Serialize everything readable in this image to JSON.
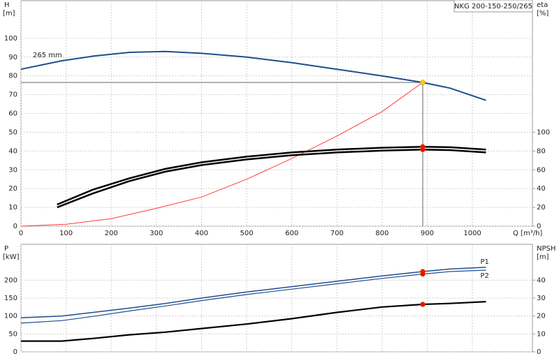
{
  "chart_data": [
    {
      "type": "line",
      "title": "NKG 200-150-250/265",
      "ylabel": "H",
      "yunit": "[m]",
      "y2label": "eta",
      "y2unit": "[%]",
      "xlabel": "Q [m³/h]",
      "xlim": [
        0,
        1133
      ],
      "xticks": [
        0,
        100,
        200,
        300,
        400,
        500,
        600,
        700,
        800,
        900,
        1000
      ],
      "ylim": [
        0,
        120
      ],
      "yticks": [
        0,
        10,
        20,
        30,
        40,
        50,
        60,
        70,
        80,
        90,
        100
      ],
      "y2lim": [
        0,
        240
      ],
      "y2ticks": [
        0,
        20,
        40,
        60,
        80,
        100
      ],
      "grid": true,
      "annotation": "265 mm",
      "series": [
        {
          "color": "#1f4e8c",
          "x": [
            0,
            90,
            160,
            240,
            320,
            400,
            500,
            600,
            700,
            800,
            890,
            950,
            1030
          ],
          "values": [
            83.5,
            88,
            90.5,
            92.5,
            93,
            92,
            90,
            87,
            83.5,
            80,
            76.5,
            73.5,
            67
          ]
        },
        {
          "color": "#ff3b3b",
          "x": [
            0,
            100,
            200,
            300,
            400,
            500,
            600,
            700,
            800,
            890
          ],
          "values": [
            0,
            1,
            4,
            9.5,
            15.5,
            25,
            36,
            48,
            61,
            76.5
          ]
        },
        {
          "color": "#000000",
          "axis": "y2",
          "x": [
            80,
            160,
            240,
            320,
            400,
            500,
            600,
            700,
            800,
            890,
            950,
            1030
          ],
          "values": [
            23,
            39,
            51,
            61,
            68,
            74,
            78.5,
            81.5,
            83.5,
            84.5,
            84,
            81.5
          ]
        },
        {
          "color": "#000000",
          "axis": "y2",
          "x": [
            80,
            160,
            240,
            320,
            400,
            500,
            600,
            700,
            800,
            890,
            950,
            1030
          ],
          "values": [
            20,
            35,
            48,
            58,
            65,
            71,
            75.5,
            78.5,
            80.5,
            81.5,
            81,
            78.5
          ]
        }
      ],
      "markers": [
        {
          "x": 890,
          "y": 76.5,
          "color": "#ffcc00"
        },
        {
          "x": 890,
          "y": 84.5,
          "axis": "y2",
          "color": "#ff0000"
        },
        {
          "x": 890,
          "y": 81.5,
          "axis": "y2",
          "color": "#ff0000"
        }
      ]
    },
    {
      "type": "line",
      "ylabel": "P",
      "yunit": "[kW]",
      "y2label": "NPSH",
      "y2unit": "[m]",
      "xlim": [
        0,
        1133
      ],
      "xticks": [
        0,
        100,
        200,
        300,
        400,
        500,
        600,
        700,
        800,
        900,
        1000
      ],
      "ylim": [
        0,
        300
      ],
      "yticks": [
        0,
        50,
        100,
        150,
        200
      ],
      "y2lim": [
        0,
        60
      ],
      "y2ticks": [
        0,
        10,
        20,
        30,
        40
      ],
      "grid": true,
      "series": [
        {
          "name": "P1",
          "color": "#1f4e8c",
          "x": [
            0,
            90,
            160,
            240,
            320,
            400,
            500,
            600,
            700,
            800,
            890,
            950,
            1030
          ],
          "values": [
            95,
            100,
            110,
            122,
            135,
            150,
            167,
            182,
            197,
            212,
            224,
            231,
            236
          ]
        },
        {
          "name": "P2",
          "color": "#1f4e8c",
          "x": [
            0,
            90,
            160,
            240,
            320,
            400,
            500,
            600,
            700,
            800,
            890,
            950,
            1030
          ],
          "values": [
            80,
            87,
            99,
            114,
            128,
            143,
            160,
            175,
            190,
            205,
            217,
            224,
            228
          ]
        },
        {
          "color": "#000000",
          "axis": "y2",
          "x": [
            0,
            90,
            160,
            240,
            320,
            400,
            500,
            600,
            700,
            800,
            890,
            950,
            1030
          ],
          "values": [
            6,
            6,
            7.5,
            9.5,
            11,
            13,
            15.5,
            18.5,
            22,
            25,
            26.5,
            27,
            28
          ]
        }
      ],
      "markers": [
        {
          "x": 890,
          "y": 224,
          "color": "#ff0000"
        },
        {
          "x": 890,
          "y": 217,
          "color": "#ff0000"
        },
        {
          "x": 890,
          "y": 26.5,
          "axis": "y2",
          "color": "#ff0000"
        }
      ]
    }
  ]
}
